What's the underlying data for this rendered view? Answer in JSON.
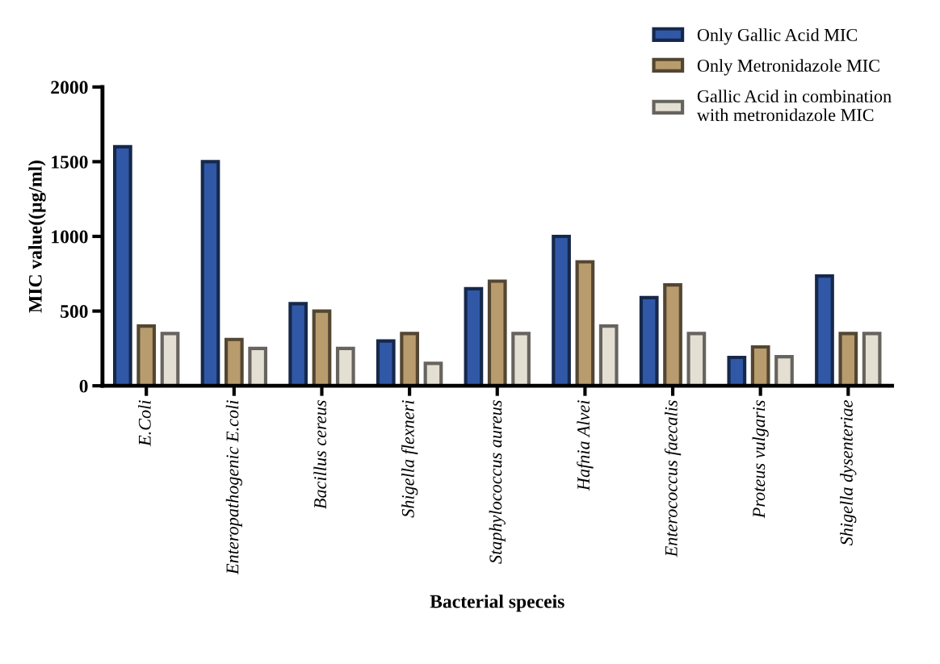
{
  "chart_data": {
    "type": "bar",
    "xlabel": "Bacterial speceis",
    "ylabel": "MIC value((µg/ml)",
    "categories": [
      "E.Coli",
      "Enteropathogenic E.coli",
      "Bacillus cereus",
      "Shigella flexneri",
      "Staphylococcus aureus",
      "Hafnia Alvei",
      "Enterococcus faecalis",
      "Proteus vulgaris",
      "Shigella dysenteriae"
    ],
    "series": [
      {
        "name": "Only Gallic Acid MIC",
        "color": "#3058a6",
        "values": [
          1600,
          1500,
          550,
          300,
          650,
          1000,
          590,
          190,
          735
        ]
      },
      {
        "name": "Only Metronidazole MIC",
        "color": "#b89c6e",
        "values": [
          400,
          310,
          500,
          350,
          700,
          830,
          675,
          260,
          350
        ]
      },
      {
        "name": "Gallic Acid in combination\nwith metronidazole MIC",
        "color": "#e4dfd3",
        "values": [
          350,
          250,
          250,
          150,
          350,
          400,
          350,
          195,
          350
        ]
      }
    ],
    "ylim": [
      0,
      2000
    ],
    "yticks": [
      0,
      500,
      1000,
      1500,
      2000
    ],
    "grid": false,
    "legend": "top right"
  }
}
